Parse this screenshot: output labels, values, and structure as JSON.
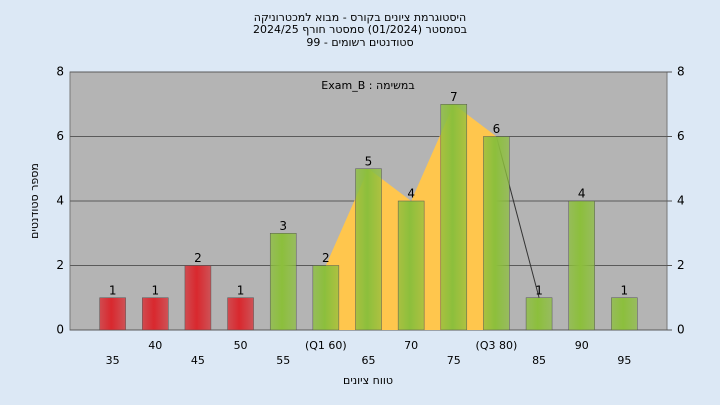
{
  "chart_data": {
    "type": "bar",
    "title": "היסטוגרמת ציונים בקורס - מבוא למכטרוניקה",
    "subtitle": "בסמסטר  (01/2024)  סמסטר חורף 2024/25",
    "subtitle2": "סטודנטים רשומים - 99",
    "annotation": "במשימה : Exam_B",
    "ylabel": "מספר סטודנטים",
    "xlabel": "טווח ציונים",
    "categories": [
      "35",
      "40",
      "45",
      "50",
      "55",
      "(Q1 60)",
      "65",
      "70",
      "75",
      "(Q3 80)",
      "85",
      "90",
      "95"
    ],
    "values": [
      1,
      1,
      2,
      1,
      3,
      2,
      5,
      4,
      7,
      6,
      1,
      4,
      1
    ],
    "colors": [
      "#d9282e",
      "#d9282e",
      "#d9282e",
      "#d9282e",
      "#8cbf3c",
      "#8cbf3c",
      "#8cbf3c",
      "#8cbf3c",
      "#8cbf3c",
      "#8cbf3c",
      "#8cbf3c",
      "#8cbf3c",
      "#8cbf3c"
    ],
    "area_color": "#ffc64d",
    "ylim": [
      0,
      8
    ],
    "yticks": [
      0,
      2,
      4,
      6,
      8
    ],
    "y2lim": [
      0,
      8
    ],
    "y2ticks": [
      0,
      2,
      4,
      6,
      8
    ],
    "grid": true
  }
}
